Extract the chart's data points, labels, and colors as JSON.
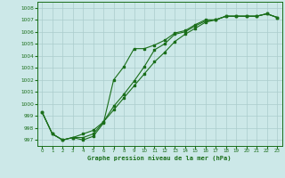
{
  "title": "Graphe pression niveau de la mer (hPa)",
  "background_color": "#cce8e8",
  "grid_color": "#aacccc",
  "line_color": "#1a6e1a",
  "xlim": [
    -0.5,
    23.5
  ],
  "ylim": [
    996.5,
    1008.5
  ],
  "xticks": [
    0,
    1,
    2,
    3,
    4,
    5,
    6,
    7,
    8,
    9,
    10,
    11,
    12,
    13,
    14,
    15,
    16,
    17,
    18,
    19,
    20,
    21,
    22,
    23
  ],
  "yticks": [
    997,
    998,
    999,
    1000,
    1001,
    1002,
    1003,
    1004,
    1005,
    1006,
    1007,
    1008
  ],
  "series": [
    {
      "x": [
        0,
        1,
        2,
        3,
        4,
        5,
        6,
        7,
        8,
        9,
        10,
        11,
        12,
        13,
        14,
        15,
        16,
        17,
        18,
        19,
        20,
        21,
        22,
        23
      ],
      "y": [
        999.3,
        997.5,
        997.0,
        997.2,
        997.0,
        997.3,
        998.4,
        1002.0,
        1003.1,
        1004.6,
        1004.6,
        1004.9,
        1005.3,
        1005.9,
        1006.1,
        1006.6,
        1007.0,
        1007.0,
        1007.3,
        1007.3,
        1007.3,
        1007.3,
        1007.5,
        1007.2
      ]
    },
    {
      "x": [
        0,
        1,
        2,
        3,
        4,
        5,
        6,
        7,
        8,
        9,
        10,
        11,
        12,
        13,
        14,
        15,
        16,
        17,
        18,
        19,
        20,
        21,
        22,
        23
      ],
      "y": [
        999.3,
        997.5,
        997.0,
        997.2,
        997.2,
        997.5,
        998.5,
        999.8,
        1000.8,
        1001.9,
        1003.1,
        1004.5,
        1005.0,
        1005.8,
        1006.0,
        1006.5,
        1006.9,
        1007.0,
        1007.3,
        1007.3,
        1007.3,
        1007.3,
        1007.5,
        1007.2
      ]
    },
    {
      "x": [
        0,
        1,
        2,
        3,
        4,
        5,
        6,
        7,
        8,
        9,
        10,
        11,
        12,
        13,
        14,
        15,
        16,
        17,
        18,
        19,
        20,
        21,
        22,
        23
      ],
      "y": [
        999.3,
        997.5,
        997.0,
        997.2,
        997.5,
        997.8,
        998.5,
        999.5,
        1000.5,
        1001.5,
        1002.5,
        1003.5,
        1004.3,
        1005.2,
        1005.8,
        1006.3,
        1006.8,
        1007.0,
        1007.3,
        1007.3,
        1007.3,
        1007.3,
        1007.5,
        1007.2
      ]
    }
  ]
}
